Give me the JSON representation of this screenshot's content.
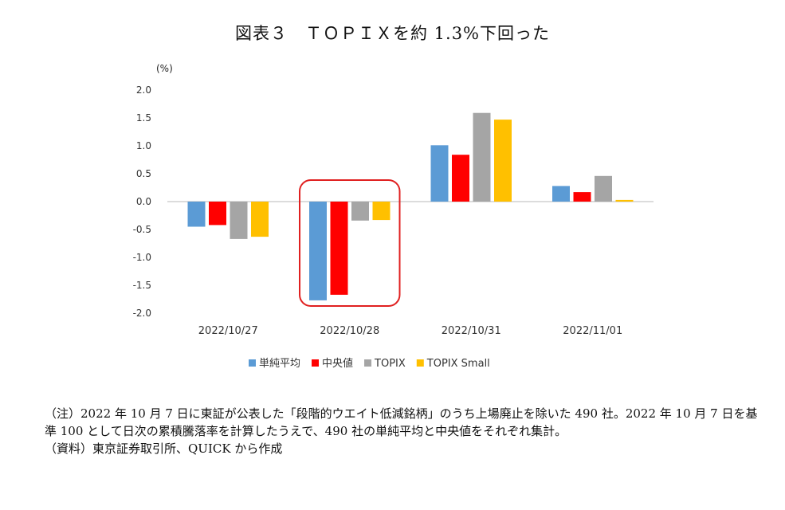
{
  "chart_title": "図表３　ＴＯＰＩＸを約 1.3%下回った",
  "notes": {
    "note1": "（注）2022 年 10 月 7 日に東証が公表した「段階的ウエイト低減銘柄」のうち上場廃止を除いた 490 社。2022 年 10 月 7 日を基準 100 として日次の累積騰落率を計算したうえで、490 社の単純平均と中央値をそれぞれ集計。",
    "source": "（資料）東京証券取引所、QUICK から作成"
  },
  "chart_data": {
    "type": "bar",
    "title": "図表３　ＴＯＰＩＸを約 1.3%下回った",
    "ylabel": "(%)",
    "ylim": [
      -2.0,
      2.0
    ],
    "yticks": [
      "2.0",
      "1.5",
      "1.0",
      "0.5",
      "0.0",
      "-0.5",
      "-1.0",
      "-1.5",
      "-2.0"
    ],
    "categories": [
      "2022/10/27",
      "2022/10/28",
      "2022/10/31",
      "2022/11/01"
    ],
    "series": [
      {
        "name": "単純平均",
        "color": "#5b9bd5",
        "values": [
          -0.45,
          -1.77,
          1.01,
          0.28
        ]
      },
      {
        "name": "中央値",
        "color": "#ff0000",
        "values": [
          -0.42,
          -1.67,
          0.84,
          0.17
        ]
      },
      {
        "name": "TOPIX",
        "color": "#a5a5a5",
        "values": [
          -0.67,
          -0.34,
          1.59,
          0.46
        ]
      },
      {
        "name": "TOPIX Small",
        "color": "#ffc000",
        "values": [
          -0.63,
          -0.33,
          1.47,
          0.03
        ]
      }
    ],
    "grid": false,
    "legend_position": "bottom",
    "highlight_category": "2022/10/28",
    "highlight_color": "#e02020"
  }
}
